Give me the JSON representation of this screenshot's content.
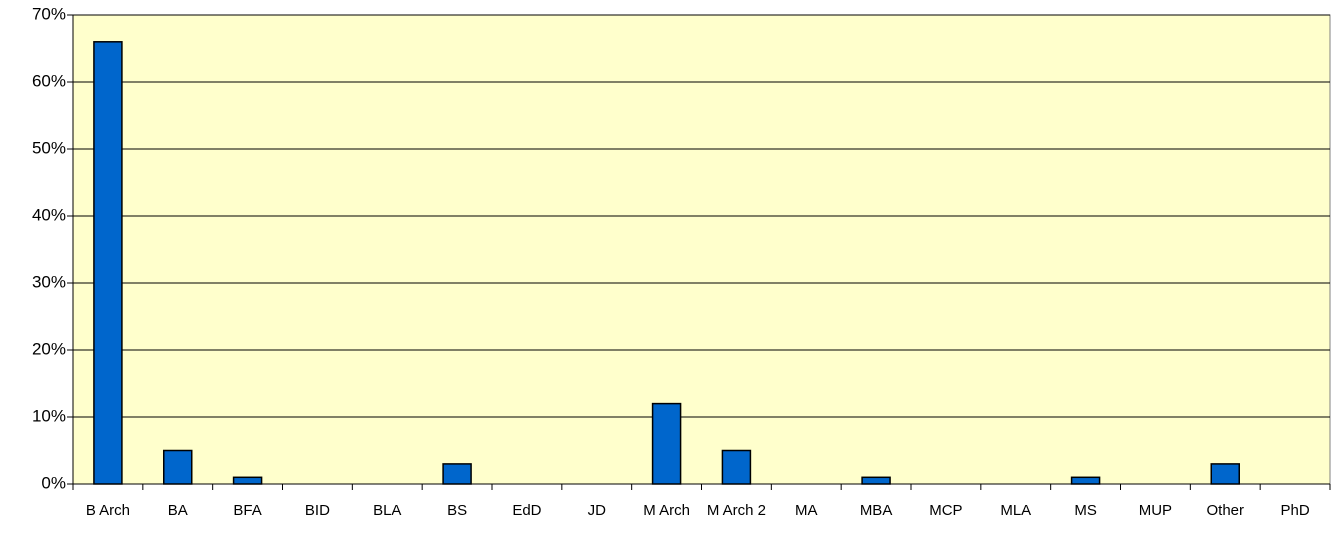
{
  "chart_data": {
    "type": "bar",
    "categories": [
      "B Arch",
      "BA",
      "BFA",
      "BID",
      "BLA",
      "BS",
      "EdD",
      "JD",
      "M Arch",
      "M Arch 2",
      "MA",
      "MBA",
      "MCP",
      "MLA",
      "MS",
      "MUP",
      "Other",
      "PhD"
    ],
    "values": [
      66,
      5,
      1,
      0,
      0,
      3,
      0,
      0,
      12,
      5,
      0,
      1,
      0,
      0,
      1,
      0,
      3,
      0
    ],
    "color": "#0066cc",
    "background": "#ffffcc",
    "ylim": [
      0,
      70
    ],
    "yticks": [
      {
        "value": 0,
        "label": "0%"
      },
      {
        "value": 10,
        "label": "10%"
      },
      {
        "value": 20,
        "label": "20%"
      },
      {
        "value": 30,
        "label": "30%"
      },
      {
        "value": 40,
        "label": "40%"
      },
      {
        "value": 50,
        "label": "50%"
      },
      {
        "value": 60,
        "label": "60%"
      },
      {
        "value": 70,
        "label": "70%"
      }
    ],
    "grid": true
  }
}
